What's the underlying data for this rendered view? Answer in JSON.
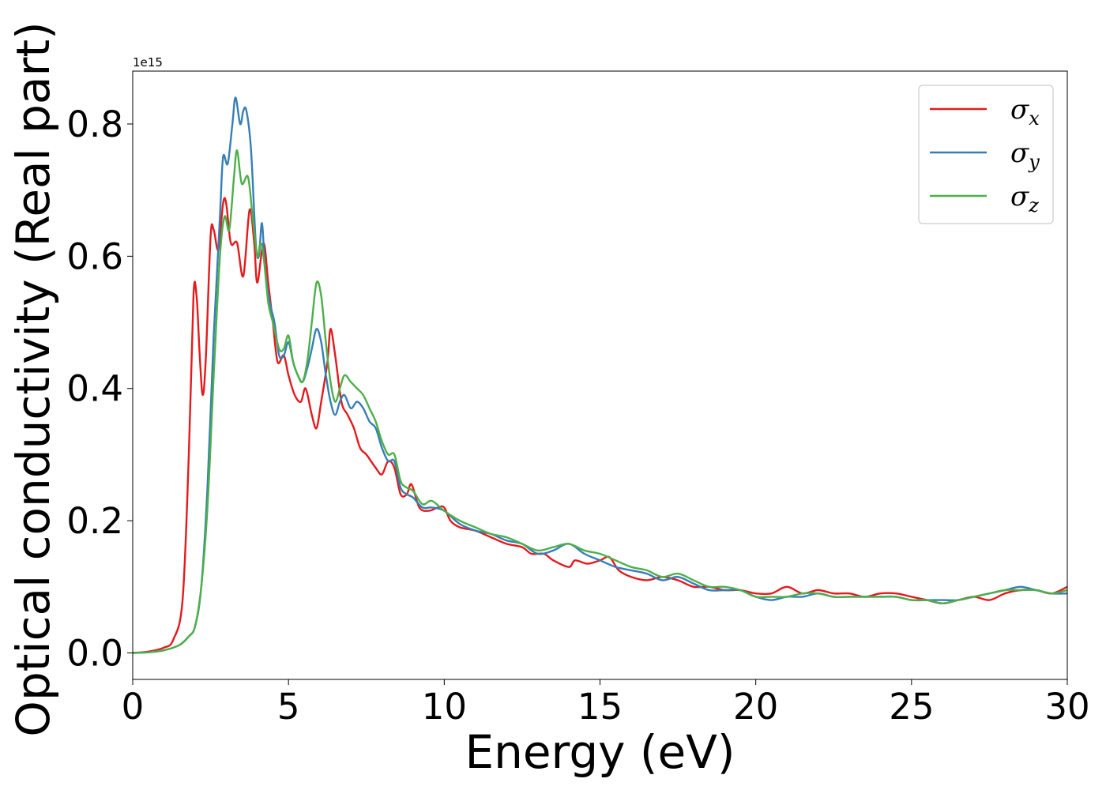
{
  "chart_data": {
    "type": "line",
    "title": "",
    "xlabel": "Energy (eV)",
    "ylabel": "Optical conductivity (Real part)",
    "y_offset_label": "1e15",
    "xlim": [
      0,
      30
    ],
    "ylim": [
      -0.04,
      0.88
    ],
    "x_ticks": [
      0,
      5,
      10,
      15,
      20,
      25,
      30
    ],
    "x_tick_labels": [
      "0",
      "5",
      "10",
      "15",
      "20",
      "25",
      "30"
    ],
    "y_ticks": [
      0.0,
      0.2,
      0.4,
      0.6,
      0.8
    ],
    "y_tick_labels": [
      "0.0",
      "0.2",
      "0.4",
      "0.6",
      "0.8"
    ],
    "grid": false,
    "legend_position": "top-right",
    "series": [
      {
        "name": "σx",
        "symbol": "σ",
        "subscript": "x",
        "color": "#e41a1c",
        "points": [
          [
            0,
            0
          ],
          [
            0.5,
            0.002
          ],
          [
            1.0,
            0.008
          ],
          [
            1.3,
            0.02
          ],
          [
            1.6,
            0.08
          ],
          [
            1.8,
            0.3
          ],
          [
            1.95,
            0.54
          ],
          [
            2.05,
            0.54
          ],
          [
            2.15,
            0.45
          ],
          [
            2.25,
            0.39
          ],
          [
            2.35,
            0.45
          ],
          [
            2.5,
            0.63
          ],
          [
            2.6,
            0.64
          ],
          [
            2.75,
            0.61
          ],
          [
            2.9,
            0.68
          ],
          [
            3.0,
            0.68
          ],
          [
            3.15,
            0.62
          ],
          [
            3.35,
            0.62
          ],
          [
            3.55,
            0.57
          ],
          [
            3.75,
            0.67
          ],
          [
            3.9,
            0.62
          ],
          [
            4.0,
            0.56
          ],
          [
            4.2,
            0.62
          ],
          [
            4.35,
            0.56
          ],
          [
            4.5,
            0.5
          ],
          [
            4.65,
            0.44
          ],
          [
            4.85,
            0.45
          ],
          [
            5.0,
            0.42
          ],
          [
            5.2,
            0.39
          ],
          [
            5.4,
            0.38
          ],
          [
            5.55,
            0.4
          ],
          [
            5.75,
            0.36
          ],
          [
            5.9,
            0.34
          ],
          [
            6.05,
            0.38
          ],
          [
            6.25,
            0.44
          ],
          [
            6.35,
            0.49
          ],
          [
            6.5,
            0.45
          ],
          [
            6.7,
            0.38
          ],
          [
            6.9,
            0.36
          ],
          [
            7.1,
            0.34
          ],
          [
            7.3,
            0.31
          ],
          [
            7.5,
            0.3
          ],
          [
            7.8,
            0.28
          ],
          [
            8.0,
            0.27
          ],
          [
            8.2,
            0.29
          ],
          [
            8.4,
            0.28
          ],
          [
            8.6,
            0.24
          ],
          [
            8.8,
            0.24
          ],
          [
            8.95,
            0.255
          ],
          [
            9.2,
            0.22
          ],
          [
            9.5,
            0.215
          ],
          [
            9.8,
            0.22
          ],
          [
            10.0,
            0.22
          ],
          [
            10.2,
            0.2
          ],
          [
            10.5,
            0.19
          ],
          [
            11.0,
            0.185
          ],
          [
            11.5,
            0.175
          ],
          [
            12.0,
            0.165
          ],
          [
            12.5,
            0.16
          ],
          [
            12.8,
            0.15
          ],
          [
            13.2,
            0.15
          ],
          [
            13.5,
            0.14
          ],
          [
            14.0,
            0.13
          ],
          [
            14.2,
            0.14
          ],
          [
            14.6,
            0.135
          ],
          [
            15.0,
            0.14
          ],
          [
            15.3,
            0.145
          ],
          [
            15.6,
            0.125
          ],
          [
            16.0,
            0.115
          ],
          [
            16.5,
            0.11
          ],
          [
            17.0,
            0.115
          ],
          [
            17.5,
            0.11
          ],
          [
            18.0,
            0.1
          ],
          [
            18.5,
            0.1
          ],
          [
            19.0,
            0.095
          ],
          [
            19.5,
            0.095
          ],
          [
            20.0,
            0.09
          ],
          [
            20.5,
            0.09
          ],
          [
            21.0,
            0.1
          ],
          [
            21.5,
            0.09
          ],
          [
            22.0,
            0.095
          ],
          [
            22.5,
            0.09
          ],
          [
            23.0,
            0.09
          ],
          [
            23.5,
            0.085
          ],
          [
            24.0,
            0.09
          ],
          [
            24.5,
            0.09
          ],
          [
            25.0,
            0.085
          ],
          [
            25.5,
            0.08
          ],
          [
            26.0,
            0.075
          ],
          [
            26.5,
            0.08
          ],
          [
            27.0,
            0.085
          ],
          [
            27.5,
            0.08
          ],
          [
            28.0,
            0.09
          ],
          [
            28.5,
            0.095
          ],
          [
            29.0,
            0.095
          ],
          [
            29.5,
            0.09
          ],
          [
            30.0,
            0.1
          ]
        ]
      },
      {
        "name": "σy",
        "symbol": "σ",
        "subscript": "y",
        "color": "#377eb8",
        "points": [
          [
            0,
            0
          ],
          [
            0.5,
            0.001
          ],
          [
            1.0,
            0.004
          ],
          [
            1.5,
            0.012
          ],
          [
            1.8,
            0.025
          ],
          [
            2.0,
            0.04
          ],
          [
            2.2,
            0.1
          ],
          [
            2.4,
            0.25
          ],
          [
            2.6,
            0.48
          ],
          [
            2.8,
            0.66
          ],
          [
            2.9,
            0.75
          ],
          [
            3.05,
            0.74
          ],
          [
            3.2,
            0.8
          ],
          [
            3.3,
            0.84
          ],
          [
            3.45,
            0.8
          ],
          [
            3.55,
            0.82
          ],
          [
            3.65,
            0.82
          ],
          [
            3.8,
            0.76
          ],
          [
            3.95,
            0.62
          ],
          [
            4.05,
            0.6
          ],
          [
            4.15,
            0.65
          ],
          [
            4.25,
            0.58
          ],
          [
            4.4,
            0.53
          ],
          [
            4.55,
            0.5
          ],
          [
            4.7,
            0.45
          ],
          [
            4.85,
            0.45
          ],
          [
            5.0,
            0.47
          ],
          [
            5.15,
            0.44
          ],
          [
            5.3,
            0.42
          ],
          [
            5.45,
            0.41
          ],
          [
            5.6,
            0.43
          ],
          [
            5.75,
            0.46
          ],
          [
            5.9,
            0.49
          ],
          [
            6.05,
            0.47
          ],
          [
            6.2,
            0.42
          ],
          [
            6.35,
            0.38
          ],
          [
            6.5,
            0.36
          ],
          [
            6.65,
            0.38
          ],
          [
            6.8,
            0.39
          ],
          [
            7.0,
            0.37
          ],
          [
            7.2,
            0.38
          ],
          [
            7.4,
            0.37
          ],
          [
            7.6,
            0.35
          ],
          [
            7.8,
            0.34
          ],
          [
            8.0,
            0.31
          ],
          [
            8.2,
            0.29
          ],
          [
            8.4,
            0.29
          ],
          [
            8.6,
            0.25
          ],
          [
            8.8,
            0.24
          ],
          [
            9.0,
            0.235
          ],
          [
            9.3,
            0.22
          ],
          [
            9.6,
            0.22
          ],
          [
            10.0,
            0.215
          ],
          [
            10.5,
            0.195
          ],
          [
            11.0,
            0.185
          ],
          [
            11.5,
            0.18
          ],
          [
            12.0,
            0.17
          ],
          [
            12.5,
            0.165
          ],
          [
            13.0,
            0.15
          ],
          [
            13.5,
            0.155
          ],
          [
            14.0,
            0.165
          ],
          [
            14.5,
            0.15
          ],
          [
            15.0,
            0.14
          ],
          [
            15.5,
            0.13
          ],
          [
            16.0,
            0.125
          ],
          [
            16.5,
            0.12
          ],
          [
            17.0,
            0.11
          ],
          [
            17.5,
            0.115
          ],
          [
            18.0,
            0.105
          ],
          [
            18.5,
            0.095
          ],
          [
            19.0,
            0.095
          ],
          [
            19.5,
            0.095
          ],
          [
            20.0,
            0.085
          ],
          [
            20.5,
            0.08
          ],
          [
            21.0,
            0.085
          ],
          [
            21.5,
            0.085
          ],
          [
            22.0,
            0.09
          ],
          [
            22.5,
            0.085
          ],
          [
            23.0,
            0.085
          ],
          [
            23.5,
            0.085
          ],
          [
            24.0,
            0.085
          ],
          [
            24.5,
            0.085
          ],
          [
            25.0,
            0.08
          ],
          [
            25.5,
            0.08
          ],
          [
            26.0,
            0.08
          ],
          [
            26.5,
            0.08
          ],
          [
            27.0,
            0.085
          ],
          [
            27.5,
            0.09
          ],
          [
            28.0,
            0.095
          ],
          [
            28.5,
            0.1
          ],
          [
            29.0,
            0.095
          ],
          [
            29.5,
            0.09
          ],
          [
            30.0,
            0.09
          ]
        ]
      },
      {
        "name": "σz",
        "symbol": "σ",
        "subscript": "z",
        "color": "#4daf4a",
        "points": [
          [
            0,
            0
          ],
          [
            0.5,
            0.001
          ],
          [
            1.0,
            0.004
          ],
          [
            1.5,
            0.012
          ],
          [
            1.8,
            0.025
          ],
          [
            2.0,
            0.04
          ],
          [
            2.2,
            0.1
          ],
          [
            2.4,
            0.22
          ],
          [
            2.6,
            0.42
          ],
          [
            2.8,
            0.6
          ],
          [
            2.95,
            0.66
          ],
          [
            3.1,
            0.64
          ],
          [
            3.25,
            0.72
          ],
          [
            3.35,
            0.76
          ],
          [
            3.5,
            0.71
          ],
          [
            3.7,
            0.72
          ],
          [
            3.85,
            0.66
          ],
          [
            4.0,
            0.6
          ],
          [
            4.1,
            0.62
          ],
          [
            4.2,
            0.6
          ],
          [
            4.35,
            0.53
          ],
          [
            4.5,
            0.5
          ],
          [
            4.7,
            0.46
          ],
          [
            4.85,
            0.46
          ],
          [
            5.0,
            0.48
          ],
          [
            5.15,
            0.44
          ],
          [
            5.3,
            0.42
          ],
          [
            5.45,
            0.41
          ],
          [
            5.6,
            0.44
          ],
          [
            5.75,
            0.5
          ],
          [
            5.9,
            0.56
          ],
          [
            6.05,
            0.54
          ],
          [
            6.2,
            0.47
          ],
          [
            6.35,
            0.41
          ],
          [
            6.5,
            0.38
          ],
          [
            6.65,
            0.4
          ],
          [
            6.8,
            0.42
          ],
          [
            7.0,
            0.41
          ],
          [
            7.2,
            0.4
          ],
          [
            7.4,
            0.39
          ],
          [
            7.6,
            0.37
          ],
          [
            7.8,
            0.35
          ],
          [
            8.0,
            0.32
          ],
          [
            8.2,
            0.3
          ],
          [
            8.4,
            0.3
          ],
          [
            8.6,
            0.26
          ],
          [
            8.8,
            0.25
          ],
          [
            9.0,
            0.245
          ],
          [
            9.3,
            0.225
          ],
          [
            9.6,
            0.23
          ],
          [
            10.0,
            0.215
          ],
          [
            10.5,
            0.2
          ],
          [
            11.0,
            0.19
          ],
          [
            11.5,
            0.18
          ],
          [
            12.0,
            0.175
          ],
          [
            12.5,
            0.165
          ],
          [
            13.0,
            0.155
          ],
          [
            13.5,
            0.16
          ],
          [
            14.0,
            0.165
          ],
          [
            14.5,
            0.155
          ],
          [
            15.0,
            0.15
          ],
          [
            15.5,
            0.14
          ],
          [
            16.0,
            0.13
          ],
          [
            16.5,
            0.125
          ],
          [
            17.0,
            0.115
          ],
          [
            17.5,
            0.12
          ],
          [
            18.0,
            0.11
          ],
          [
            18.5,
            0.1
          ],
          [
            19.0,
            0.1
          ],
          [
            19.5,
            0.095
          ],
          [
            20.0,
            0.085
          ],
          [
            20.5,
            0.085
          ],
          [
            21.0,
            0.085
          ],
          [
            21.5,
            0.09
          ],
          [
            22.0,
            0.09
          ],
          [
            22.5,
            0.085
          ],
          [
            23.0,
            0.085
          ],
          [
            23.5,
            0.085
          ],
          [
            24.0,
            0.085
          ],
          [
            24.5,
            0.085
          ],
          [
            25.0,
            0.08
          ],
          [
            25.5,
            0.08
          ],
          [
            26.0,
            0.075
          ],
          [
            26.5,
            0.08
          ],
          [
            27.0,
            0.085
          ],
          [
            27.5,
            0.09
          ],
          [
            28.0,
            0.095
          ],
          [
            28.5,
            0.095
          ],
          [
            29.0,
            0.095
          ],
          [
            29.5,
            0.09
          ],
          [
            30.0,
            0.095
          ]
        ]
      }
    ]
  }
}
